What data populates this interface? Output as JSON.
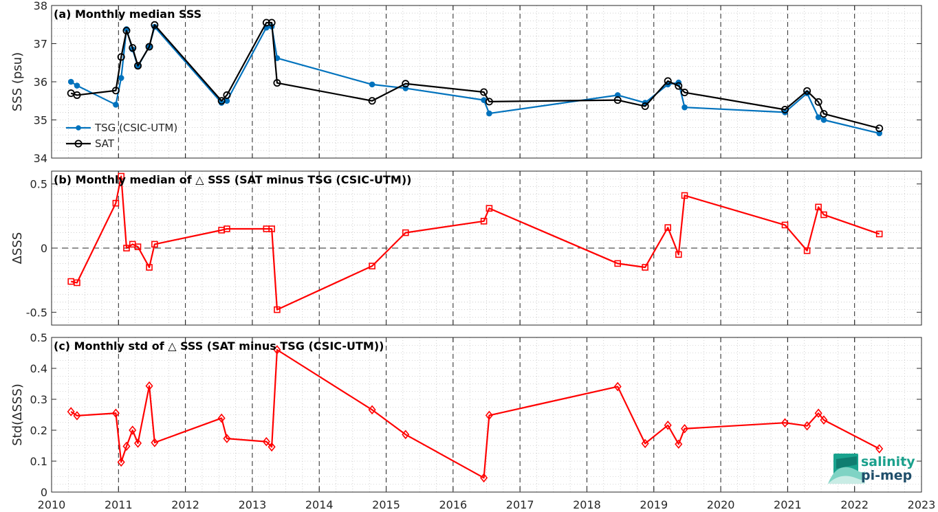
{
  "x_ticks": [
    "2010",
    "2011",
    "2012",
    "2013",
    "2014",
    "2015",
    "2016",
    "2017",
    "2018",
    "2019",
    "2020",
    "2021",
    "2022",
    "2023"
  ],
  "logo": {
    "line1": "salinity",
    "line2": "pi-mep"
  },
  "colors": {
    "tsg": "#0072BD",
    "sat": "#000000",
    "diff": "#FF0000",
    "zero_line": "#262626",
    "grid": "#b0b0b0"
  },
  "chart_data": [
    {
      "type": "line",
      "title": "(a) Monthly median SSS",
      "ylabel": "SSS (psu)",
      "xlim": [
        2010,
        2023
      ],
      "ylim": [
        34,
        38
      ],
      "y_ticks": [
        "34",
        "35",
        "36",
        "37",
        "38"
      ],
      "legend_position": "lower-left",
      "series": [
        {
          "name": "TSG (CSIC-UTM)",
          "marker": "filled-dot",
          "x": [
            2010.29,
            2010.38,
            2010.96,
            2011.04,
            2011.12,
            2011.21,
            2011.29,
            2011.46,
            2011.54,
            2012.54,
            2012.62,
            2013.21,
            2013.29,
            2013.37,
            2014.79,
            2015.29,
            2016.46,
            2016.54,
            2018.46,
            2018.87,
            2019.21,
            2019.37,
            2019.46,
            2020.96,
            2021.29,
            2021.46,
            2021.54,
            2022.37
          ],
          "values": [
            36.0,
            35.9,
            35.4,
            36.1,
            37.38,
            36.85,
            36.4,
            36.93,
            37.44,
            35.45,
            35.5,
            37.42,
            37.45,
            36.62,
            35.93,
            35.83,
            35.52,
            35.17,
            35.65,
            35.45,
            35.93,
            35.98,
            35.33,
            35.2,
            35.7,
            35.07,
            35.0,
            34.65
          ]
        },
        {
          "name": "SAT",
          "marker": "open-circle",
          "x": [
            2010.29,
            2010.38,
            2010.96,
            2011.04,
            2011.12,
            2011.21,
            2011.29,
            2011.46,
            2011.54,
            2012.54,
            2012.62,
            2013.21,
            2013.29,
            2013.37,
            2014.79,
            2015.29,
            2016.46,
            2016.54,
            2018.46,
            2018.87,
            2019.21,
            2019.37,
            2019.46,
            2020.96,
            2021.29,
            2021.46,
            2021.54,
            2022.37
          ],
          "values": [
            35.7,
            35.65,
            35.77,
            36.65,
            37.34,
            36.89,
            36.42,
            36.92,
            37.49,
            35.5,
            35.65,
            37.55,
            37.55,
            35.97,
            35.5,
            35.95,
            35.73,
            35.48,
            35.52,
            35.36,
            36.02,
            35.89,
            35.72,
            35.27,
            35.76,
            35.47,
            35.16,
            34.78
          ]
        }
      ]
    },
    {
      "type": "line",
      "title": "(b) Monthly median of △ SSS (SAT minus TSG (CSIC-UTM))",
      "ylabel": "ΔSSS",
      "xlim": [
        2010,
        2023
      ],
      "ylim": [
        -0.6,
        0.6
      ],
      "y_ticks": [
        "-0.5",
        "0",
        "0.5"
      ],
      "series": [
        {
          "marker": "open-square",
          "x": [
            2010.29,
            2010.38,
            2010.96,
            2011.04,
            2011.12,
            2011.21,
            2011.29,
            2011.46,
            2011.54,
            2012.54,
            2012.62,
            2013.21,
            2013.29,
            2013.37,
            2014.79,
            2015.29,
            2016.46,
            2016.54,
            2018.46,
            2018.87,
            2019.21,
            2019.37,
            2019.46,
            2020.96,
            2021.29,
            2021.46,
            2021.54,
            2022.37
          ],
          "values": [
            -0.26,
            -0.27,
            0.35,
            0.56,
            0.0,
            0.03,
            0.01,
            -0.15,
            0.03,
            0.14,
            0.15,
            0.15,
            0.15,
            -0.48,
            -0.14,
            0.12,
            0.21,
            0.31,
            -0.12,
            -0.15,
            0.16,
            -0.05,
            0.41,
            0.18,
            -0.02,
            0.32,
            0.26,
            0.11
          ]
        }
      ]
    },
    {
      "type": "line",
      "title": "(c) Monthly std of △ SSS (SAT minus TSG (CSIC-UTM))",
      "ylabel": "Std(ΔSSS)",
      "xlim": [
        2010,
        2023
      ],
      "ylim": [
        0,
        0.5
      ],
      "y_ticks": [
        "0",
        "0.1",
        "0.2",
        "0.3",
        "0.4",
        "0.5"
      ],
      "series": [
        {
          "marker": "open-diamond",
          "x": [
            2010.29,
            2010.38,
            2010.96,
            2011.04,
            2011.12,
            2011.21,
            2011.29,
            2011.46,
            2011.54,
            2012.54,
            2012.62,
            2013.21,
            2013.29,
            2013.37,
            2014.79,
            2015.29,
            2016.46,
            2016.54,
            2018.46,
            2018.87,
            2019.21,
            2019.37,
            2019.46,
            2020.96,
            2021.29,
            2021.46,
            2021.54,
            2022.37
          ],
          "values": [
            0.26,
            0.247,
            0.255,
            0.097,
            0.148,
            0.2,
            0.158,
            0.343,
            0.16,
            0.239,
            0.173,
            0.163,
            0.146,
            0.46,
            0.266,
            0.186,
            0.046,
            0.248,
            0.341,
            0.157,
            0.216,
            0.155,
            0.205,
            0.224,
            0.214,
            0.255,
            0.233,
            0.14
          ]
        }
      ]
    }
  ]
}
